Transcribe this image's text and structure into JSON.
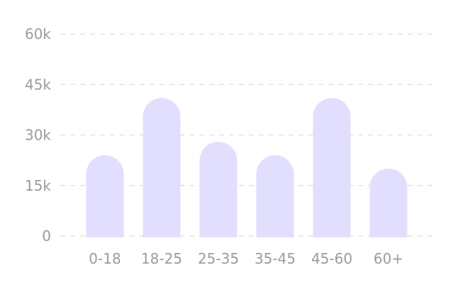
{
  "chart_data": {
    "type": "bar",
    "categories": [
      "0-18",
      "18-25",
      "25-35",
      "35-45",
      "45-60",
      "60+"
    ],
    "values": [
      24000,
      41000,
      28000,
      24000,
      41000,
      20000
    ],
    "ylim": [
      0,
      60000
    ],
    "yticks": [
      0,
      15000,
      30000,
      45000,
      60000
    ],
    "ytick_labels": [
      "0",
      "15k",
      "30k",
      "45k",
      "60k"
    ],
    "grid": true,
    "colors": {
      "bar": "#e2dffe",
      "grid": "#e2e2e6",
      "label": "#9a9aa2"
    }
  }
}
